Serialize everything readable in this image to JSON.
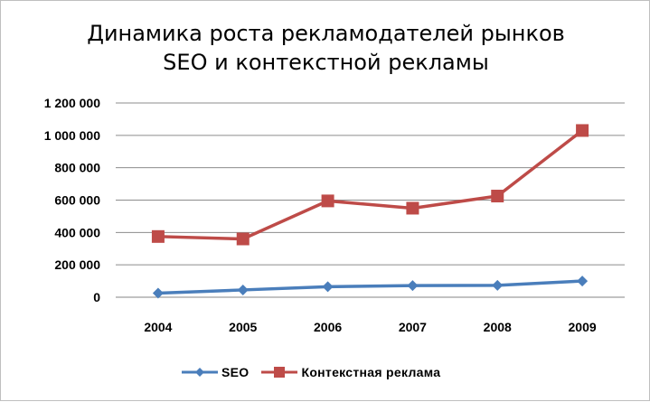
{
  "chart_data": {
    "type": "line",
    "title": [
      "Динамика роста рекламодателей рынков",
      "SEO и контекстной рекламы"
    ],
    "categories": [
      "2004",
      "2005",
      "2006",
      "2007",
      "2008",
      "2009"
    ],
    "y_ticks": [
      "0",
      "200 000",
      "400 000",
      "600 000",
      "800 000",
      "1 000 000",
      "1 200 000"
    ],
    "ylim": [
      0,
      1200000
    ],
    "grid": true,
    "legend_position": "bottom",
    "series": [
      {
        "name": "SEO",
        "values": [
          25000,
          45000,
          65000,
          72000,
          73000,
          100000
        ],
        "color": "#4a7ebb",
        "marker": "diamond"
      },
      {
        "name": "Контекстная реклама",
        "values": [
          375000,
          360000,
          595000,
          550000,
          625000,
          1030000
        ],
        "color": "#be4b48",
        "marker": "square"
      }
    ]
  }
}
